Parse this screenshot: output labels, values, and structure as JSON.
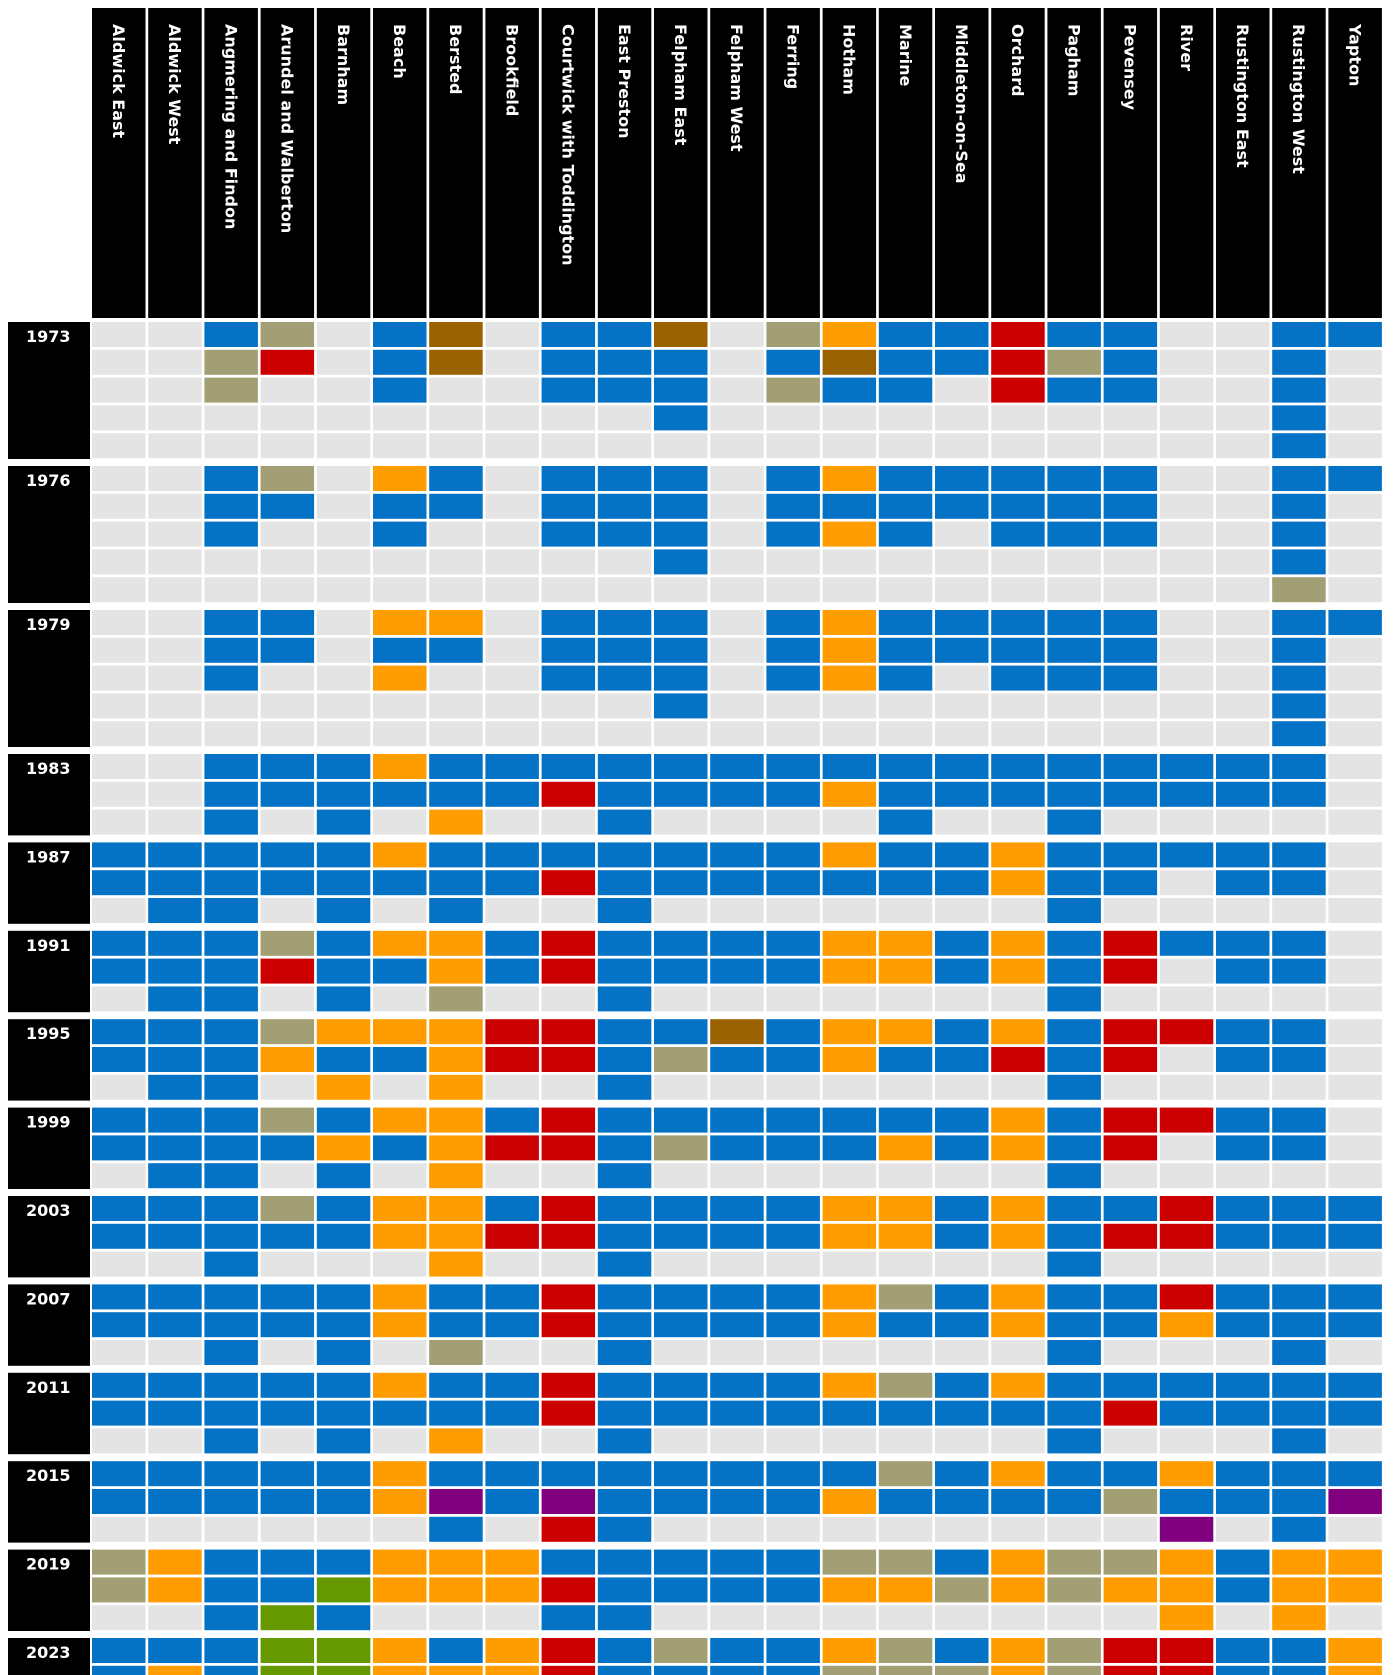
{
  "chart_data": {
    "type": "heatmap",
    "colors": {
      "empty": "#e4e4e4",
      "B": "#0473c6",
      "O": "#fe9c00",
      "R": "#cc0000",
      "K": "#a19f73",
      "N": "#9a6200",
      "P": "#800080",
      "G": "#669900"
    },
    "wards": [
      "Aldwick East",
      "Aldwick West",
      "Angmering and Findon",
      "Arundel and Walberton",
      "Barnham",
      "Beach",
      "Bersted",
      "Brookfield",
      "Courtwick with Toddington",
      "East Preston",
      "Felpham East",
      "Felpham West",
      "Ferring",
      "Hotham",
      "Marine",
      "Middleton-on-Sea",
      "Orchard",
      "Pagham",
      "Pevensey",
      "River",
      "Rustington East",
      "Rustington West",
      "Yapton"
    ],
    "elections": [
      {
        "year": "1973",
        "seats": 5,
        "wards": [
          "",
          "",
          "BKK",
          "KR",
          "",
          "BBB",
          "NN",
          "",
          "BBB",
          "BBB",
          "NBBB",
          "",
          "KBK",
          "ONB",
          "BBB",
          "BB",
          "RRR",
          "BKB",
          "BBB",
          "",
          "",
          "BBBBB",
          "B"
        ]
      },
      {
        "year": "1976",
        "seats": 5,
        "wards": [
          "",
          "",
          "BBB",
          "KB",
          "",
          "OBB",
          "BB",
          "",
          "BBB",
          "BBB",
          "BBBB",
          "",
          "BBB",
          "OBO",
          "BBB",
          "BB",
          "BBB",
          "BBB",
          "BBB",
          "",
          "",
          "BBBBK",
          "B"
        ]
      },
      {
        "year": "1979",
        "seats": 5,
        "wards": [
          "",
          "",
          "BBB",
          "BB",
          "",
          "OBO",
          "OB",
          "",
          "BBB",
          "BBB",
          "BBBB",
          "",
          "BBB",
          "OOO",
          "BBB",
          "BB",
          "BBB",
          "BBB",
          "BBB",
          "",
          "",
          "BBBBB",
          "B"
        ]
      },
      {
        "year": "1983",
        "seats": 3,
        "wards": [
          "",
          "",
          "BBB",
          "BB",
          "BBB",
          "OB",
          "BBO",
          "BB",
          "BR",
          "BBB",
          "BB",
          "BB",
          "BB",
          "BO",
          "BBB",
          "BB",
          "BB",
          "BBB",
          "BB",
          "BB",
          "BB",
          "BB",
          ""
        ]
      },
      {
        "year": "1987",
        "seats": 3,
        "wards": [
          "BB",
          "BBB",
          "BBB",
          "BB",
          "BBB",
          "OB",
          "BBB",
          "BB",
          "BR",
          "BBB",
          "BB",
          "BB",
          "BB",
          "OB",
          "BB",
          "BB",
          "OO",
          "BBB",
          "BB",
          "B",
          "BB",
          "BB",
          ""
        ]
      },
      {
        "year": "1991",
        "seats": 3,
        "wards": [
          "BB",
          "BBB",
          "BBB",
          "KR",
          "BBB",
          "OB",
          "OOK",
          "BB",
          "RR",
          "BBB",
          "BB",
          "BB",
          "BB",
          "OO",
          "OO",
          "BB",
          "OO",
          "BBB",
          "RR",
          "B",
          "BB",
          "BB",
          ""
        ]
      },
      {
        "year": "1995",
        "seats": 3,
        "wards": [
          "BB",
          "BBB",
          "BBB",
          "KO",
          "OBO",
          "OB",
          "OOO",
          "RR",
          "RR",
          "BBB",
          "BK",
          "NB",
          "BB",
          "OO",
          "OB",
          "BB",
          "OR",
          "BBB",
          "RR",
          "R",
          "BB",
          "BB",
          ""
        ]
      },
      {
        "year": "1999",
        "seats": 3,
        "wards": [
          "BB",
          "BBB",
          "BBB",
          "KB",
          "BOB",
          "OB",
          "OOO",
          "BR",
          "RR",
          "BBB",
          "BK",
          "BB",
          "BB",
          "BB",
          "BO",
          "BB",
          "OO",
          "BBB",
          "RR",
          "R",
          "BB",
          "BB",
          ""
        ]
      },
      {
        "year": "2003",
        "seats": 3,
        "wards": [
          "BB",
          "BB",
          "BBB",
          "KB",
          "BB",
          "OO",
          "OOO",
          "BR",
          "RR",
          "BBB",
          "BB",
          "BB",
          "BB",
          "OO",
          "OO",
          "BB",
          "OO",
          "BBB",
          "BR",
          "RR",
          "BB",
          "BB",
          "BB"
        ]
      },
      {
        "year": "2007",
        "seats": 3,
        "wards": [
          "BB",
          "BB",
          "BBB",
          "BB",
          "BBB",
          "OO",
          "BBK",
          "BB",
          "RR",
          "BBB",
          "BB",
          "BB",
          "BB",
          "OO",
          "KB",
          "BB",
          "OO",
          "BBB",
          "BB",
          "RO",
          "BB",
          "BBB",
          "BB"
        ]
      },
      {
        "year": "2011",
        "seats": 3,
        "wards": [
          "BB",
          "BB",
          "BBB",
          "BB",
          "BBB",
          "OB",
          "BBO",
          "BB",
          "RR",
          "BBB",
          "BB",
          "BB",
          "BB",
          "OB",
          "KB",
          "BB",
          "OB",
          "BBB",
          "BR",
          "BB",
          "BB",
          "BBB",
          "BB"
        ]
      },
      {
        "year": "2015",
        "seats": 3,
        "wards": [
          "BB",
          "BB",
          "BB",
          "BB",
          "BB",
          "OO",
          "BPB",
          "BB",
          "BPR",
          "BBB",
          "BB",
          "BB",
          "BB",
          "BO",
          "KB",
          "BB",
          "OB",
          "BB",
          "BK",
          "OBP",
          "BB",
          "BBB",
          "BP"
        ]
      },
      {
        "year": "2019",
        "seats": 3,
        "wards": [
          "KK",
          "OO",
          "BBB",
          "BBG",
          "BGB",
          "OO",
          "OO",
          "OO",
          "BRB",
          "BBB",
          "BB",
          "BB",
          "BB",
          "KO",
          "KO",
          "BK",
          "OO",
          "KK",
          "KO",
          "OOO",
          "BB",
          "OOO",
          "OO"
        ]
      },
      {
        "year": "2023",
        "seats": 3,
        "wards": [
          "BB",
          "BO",
          "BBO",
          "GGG",
          "GGG",
          "OO",
          "BOO",
          "OO",
          "RRR",
          "BBB",
          "KB",
          "BB",
          "BB",
          "OK",
          "KK",
          "BK",
          "OO",
          "KK",
          "RR",
          "RR",
          "BB",
          "BB",
          "OO"
        ]
      }
    ]
  }
}
